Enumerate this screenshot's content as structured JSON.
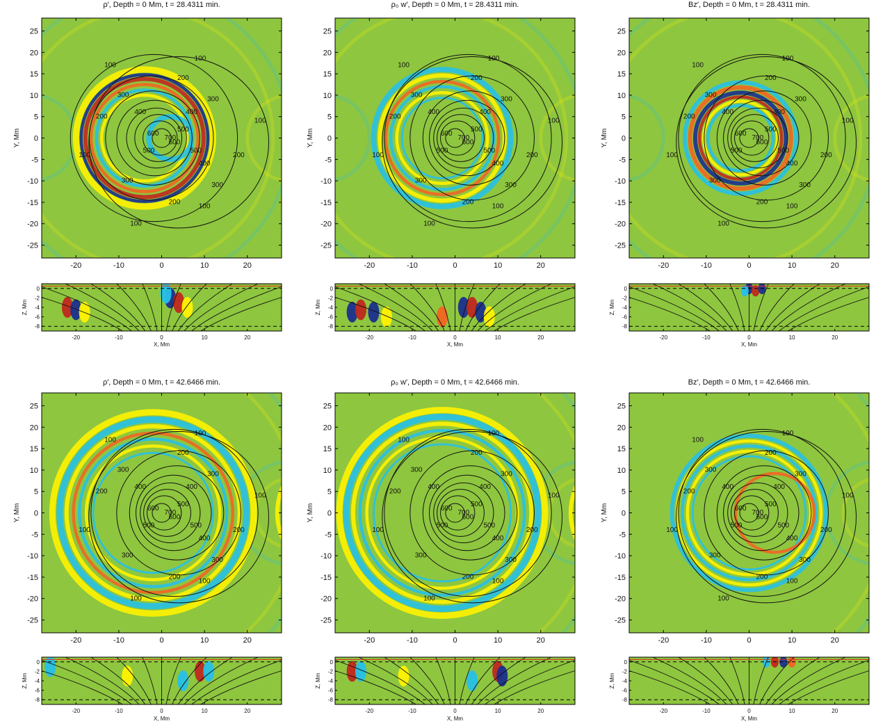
{
  "colors": {
    "background_field": "#8ec63f",
    "positive_strong": "#c0281e",
    "positive_mid": "#f26522",
    "positive_weak": "#fff200",
    "negative_weak": "#27c0e8",
    "negative_strong": "#1b2f8e",
    "contour": "#111111",
    "surface_line": "#e03020"
  },
  "chart_data": [
    {
      "type": "heatmap",
      "title": "ρ′,  Depth = 0 Mm,  t = 28.4311 min.",
      "quantity": "rho",
      "time_min": 28.4311,
      "xlabel": "",
      "ylabel": "Y, Mm",
      "xlim": [
        -28,
        28
      ],
      "ylim": [
        -28,
        28
      ],
      "xticks": [
        -20,
        -10,
        0,
        10,
        20
      ],
      "yticks": [
        -25,
        -20,
        -15,
        -10,
        -5,
        0,
        5,
        10,
        15,
        20,
        25
      ],
      "front_center": [
        -2,
        0
      ],
      "front_radius": [
        [
          16,
          2.2
        ],
        [
          13,
          1.8
        ],
        [
          10,
          1.2
        ]
      ],
      "contour_levels": [
        100,
        200,
        300,
        400,
        500,
        600,
        700
      ],
      "contour_labels": [
        "100",
        "200",
        "300",
        "400",
        "500",
        "600",
        "700"
      ],
      "side_panel": {
        "xlabel": "X, Mm",
        "ylabel": "Z, Mm",
        "xticks": [
          -20,
          -10,
          0,
          10,
          20
        ],
        "zticks": [
          0,
          -2,
          -4,
          -6,
          -8
        ],
        "zlim": [
          -9,
          1
        ]
      }
    },
    {
      "type": "heatmap",
      "title": "ρ₀ w′,  Depth = 0 Mm,  t = 28.4311 min.",
      "quantity": "rho0_w",
      "time_min": 28.4311,
      "xlabel": "",
      "ylabel": "Y, Mm",
      "xlim": [
        -28,
        28
      ],
      "ylim": [
        -28,
        28
      ],
      "xticks": [
        -20,
        -10,
        0,
        10,
        20
      ],
      "yticks": [
        -25,
        -20,
        -15,
        -10,
        -5,
        0,
        5,
        10,
        15,
        20,
        25
      ],
      "contour_levels": [
        100,
        200,
        300,
        400,
        500,
        600,
        700
      ],
      "contour_labels": [
        "100",
        "200",
        "300",
        "400",
        "500",
        "600",
        "700"
      ],
      "side_panel": {
        "xlabel": "X, Mm",
        "ylabel": "Z, Mm",
        "xticks": [
          -20,
          -10,
          0,
          10,
          20
        ],
        "zticks": [
          0,
          -2,
          -4,
          -6,
          -8
        ],
        "zlim": [
          -9,
          1
        ]
      }
    },
    {
      "type": "heatmap",
      "title": "Bz′,  Depth = 0 Mm,  t = 28.4311 min.",
      "quantity": "Bz",
      "time_min": 28.4311,
      "xlabel": "",
      "ylabel": "Y, Mm",
      "xlim": [
        -28,
        28
      ],
      "ylim": [
        -28,
        28
      ],
      "xticks": [
        -20,
        -10,
        0,
        10,
        20
      ],
      "yticks": [
        -25,
        -20,
        -15,
        -10,
        -5,
        0,
        5,
        10,
        15,
        20,
        25
      ],
      "contour_levels": [
        100,
        200,
        300,
        400,
        500,
        600,
        700
      ],
      "contour_labels": [
        "100",
        "200",
        "300",
        "400",
        "500",
        "600",
        "700"
      ],
      "side_panel": {
        "xlabel": "X, Mm",
        "ylabel": "Z, Mm",
        "xticks": [
          -20,
          -10,
          0,
          10,
          20
        ],
        "zticks": [
          0,
          -2,
          -4,
          -6,
          -8
        ],
        "zlim": [
          -9,
          1
        ]
      }
    },
    {
      "type": "heatmap",
      "title": "ρ′,  Depth = 0 Mm,  t = 42.6466 min.",
      "quantity": "rho",
      "time_min": 42.6466,
      "xlabel": "",
      "ylabel": "Y, Mm",
      "xlim": [
        -28,
        28
      ],
      "ylim": [
        -28,
        28
      ],
      "xticks": [
        -20,
        -10,
        0,
        10,
        20
      ],
      "yticks": [
        -25,
        -20,
        -15,
        -10,
        -5,
        0,
        5,
        10,
        15,
        20,
        25
      ],
      "contour_levels": [
        100,
        200,
        300,
        400,
        500,
        600,
        700
      ],
      "contour_labels": [
        "100",
        "200",
        "300",
        "400",
        "500",
        "600",
        "700"
      ],
      "side_panel": {
        "xlabel": "X, Mm",
        "ylabel": "Z, Mm",
        "xticks": [
          -20,
          -10,
          0,
          10,
          20
        ],
        "zticks": [
          0,
          -2,
          -4,
          -6,
          -8
        ],
        "zlim": [
          -9,
          1
        ]
      }
    },
    {
      "type": "heatmap",
      "title": "ρ₀ w′,  Depth = 0 Mm,  t = 42.6466 min.",
      "quantity": "rho0_w",
      "time_min": 42.6466,
      "xlabel": "",
      "ylabel": "Y, Mm",
      "xlim": [
        -28,
        28
      ],
      "ylim": [
        -28,
        28
      ],
      "xticks": [
        -20,
        -10,
        0,
        10,
        20
      ],
      "yticks": [
        -25,
        -20,
        -15,
        -10,
        -5,
        0,
        5,
        10,
        15,
        20,
        25
      ],
      "contour_levels": [
        100,
        200,
        300,
        400,
        500,
        600,
        700
      ],
      "contour_labels": [
        "100",
        "200",
        "300",
        "400",
        "500",
        "600",
        "700"
      ],
      "side_panel": {
        "xlabel": "X, Mm",
        "ylabel": "Z, Mm",
        "xticks": [
          -20,
          -10,
          0,
          10,
          20
        ],
        "zticks": [
          0,
          -2,
          -4,
          -6,
          -8
        ],
        "zlim": [
          -9,
          1
        ]
      }
    },
    {
      "type": "heatmap",
      "title": "Bz′,  Depth = 0 Mm,  t = 42.6466 min.",
      "quantity": "Bz",
      "time_min": 42.6466,
      "xlabel": "",
      "ylabel": "Y, Mm",
      "xlim": [
        -28,
        28
      ],
      "ylim": [
        -28,
        28
      ],
      "xticks": [
        -20,
        -10,
        0,
        10,
        20
      ],
      "yticks": [
        -25,
        -20,
        -15,
        -10,
        -5,
        0,
        5,
        10,
        15,
        20,
        25
      ],
      "contour_levels": [
        100,
        200,
        300,
        400,
        500,
        600,
        700
      ],
      "contour_labels": [
        "100",
        "200",
        "300",
        "400",
        "500",
        "600",
        "700"
      ],
      "side_panel": {
        "xlabel": "X, Mm",
        "ylabel": "Z, Mm",
        "xticks": [
          -20,
          -10,
          0,
          10,
          20
        ],
        "zticks": [
          0,
          -2,
          -4,
          -6,
          -8
        ],
        "zlim": [
          -9,
          1
        ]
      }
    }
  ]
}
